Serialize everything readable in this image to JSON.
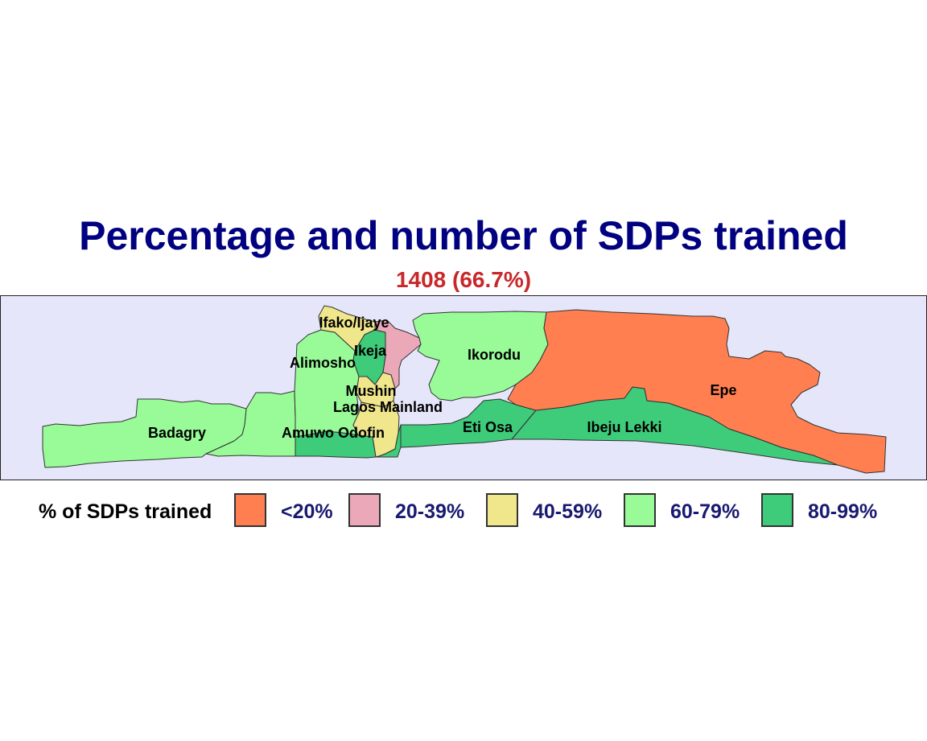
{
  "title": "Percentage and number of SDPs trained",
  "subtitle": "1408 (66.7%)",
  "map": {
    "lgas": [
      {
        "name": "Badagry",
        "category": "60-79%"
      },
      {
        "name": "Amuwo Odofin",
        "category": "80-99%"
      },
      {
        "name": "Alimosho",
        "category": "60-79%"
      },
      {
        "name": "Ifako/Ijaye",
        "category": "40-59%"
      },
      {
        "name": "Ikeja",
        "category": "80-99%"
      },
      {
        "name": "Mushin",
        "category": "40-59%"
      },
      {
        "name": "Lagos Mainland",
        "category": "40-59%"
      },
      {
        "name": "Ikorodu",
        "category": "60-79%"
      },
      {
        "name": "Eti Osa",
        "category": "80-99%"
      },
      {
        "name": "Ibeju Lekki",
        "category": "80-99%"
      },
      {
        "name": "Epe",
        "category": "<20%"
      }
    ],
    "unlabeled_regions": [
      {
        "category": "20-39%"
      },
      {
        "category": "60-79%"
      },
      {
        "category": "80-99%"
      }
    ]
  },
  "legend": {
    "title": "% of SDPs trained",
    "items": [
      {
        "label": "<20%",
        "color": "#ff7f50"
      },
      {
        "label": "20-39%",
        "color": "#eaa8b8"
      },
      {
        "label": "40-59%",
        "color": "#f0e68c"
      },
      {
        "label": "60-79%",
        "color": "#98fb98"
      },
      {
        "label": "80-99%",
        "color": "#3ecb7a"
      }
    ]
  },
  "colors": {
    "title": "#000080",
    "subtitle": "#c8282a",
    "background": "#e6e6fa",
    "legend_text": "#191970"
  }
}
